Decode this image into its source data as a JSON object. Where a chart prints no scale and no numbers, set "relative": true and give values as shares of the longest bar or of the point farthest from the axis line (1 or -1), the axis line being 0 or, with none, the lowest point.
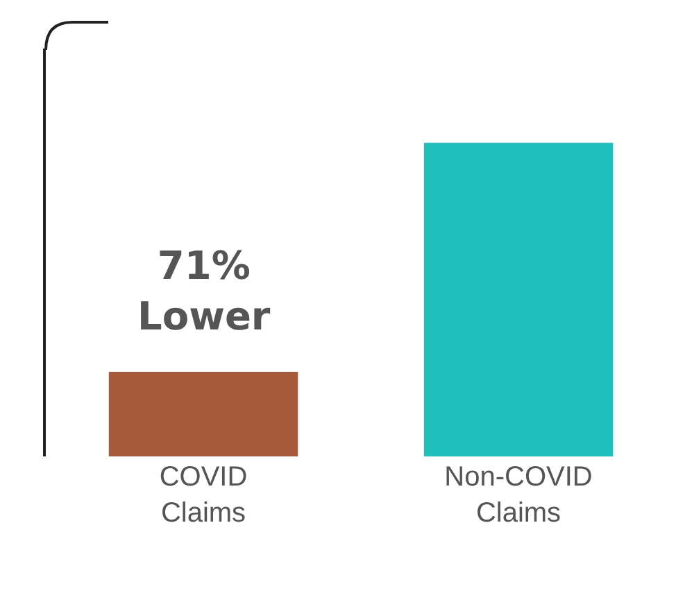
{
  "chart_data": {
    "type": "bar",
    "relative": true,
    "categories": [
      "COVID Claims",
      "Non-COVID Claims"
    ],
    "values": [
      0.27,
      1
    ],
    "colors": [
      "#a65a3a",
      "#1fbfbd"
    ],
    "annotations": [
      "71% Lower"
    ],
    "grid": false,
    "legend": false
  }
}
